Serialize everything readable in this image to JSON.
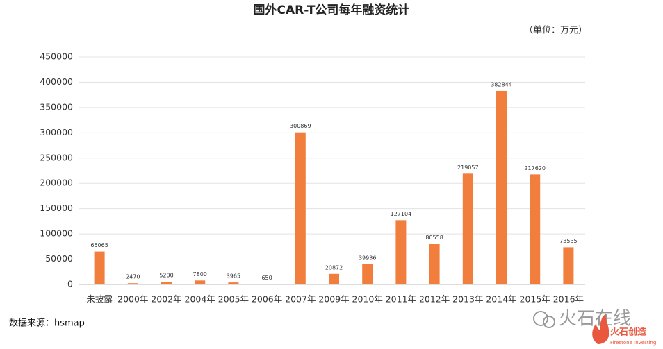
{
  "chart_data": {
    "type": "bar",
    "title": "国外CAR-T公司每年融资统计",
    "unit_note": "（单位：万元）",
    "source": "数据来源：hsmap",
    "categories": [
      "未披露",
      "2000年",
      "2002年",
      "2004年",
      "2005年",
      "2006年",
      "2007年",
      "2009年",
      "2010年",
      "2011年",
      "2012年",
      "2013年",
      "2014年",
      "2015年",
      "2016年"
    ],
    "values": [
      65065,
      2470,
      5200,
      7800,
      3965,
      650,
      300869,
      20872,
      39936,
      127104,
      80558,
      219057,
      382844,
      217620,
      73535
    ],
    "color": "#f27e3e",
    "ylim": [
      0,
      450000
    ],
    "yticks": [
      0,
      50000,
      100000,
      150000,
      200000,
      250000,
      300000,
      350000,
      400000,
      450000
    ],
    "grid": true
  },
  "watermark": {
    "text": "火石在线",
    "logo": "火石创造",
    "logo_sub": "Firestone Investing"
  }
}
